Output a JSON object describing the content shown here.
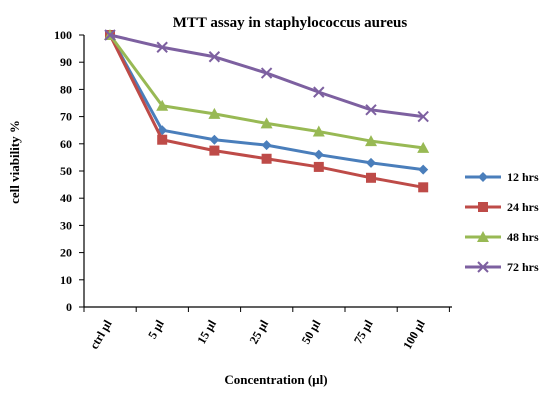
{
  "chart_data": {
    "type": "line",
    "title": "MTT assay in staphylococcus aureus",
    "xlabel": "Concentration (µl)",
    "ylabel": "cell viability %",
    "categories": [
      "ctrl µl",
      "5 µl",
      "15 µl",
      "25 µl",
      "50 µl",
      "75 µl",
      "100 µl"
    ],
    "ylim": [
      0,
      100
    ],
    "yticks": [
      0,
      10,
      20,
      30,
      40,
      50,
      60,
      70,
      80,
      90,
      100
    ],
    "grid": false,
    "legend_position": "right",
    "series": [
      {
        "name": "12 hrs",
        "color": "#4a7ebb",
        "marker": "diamond",
        "values": [
          100,
          65,
          61.5,
          59.5,
          56,
          53,
          50.5
        ]
      },
      {
        "name": "24 hrs",
        "color": "#be4b48",
        "marker": "square",
        "values": [
          100,
          61.5,
          57.5,
          54.5,
          51.5,
          47.5,
          44
        ]
      },
      {
        "name": "48 hrs",
        "color": "#98b954",
        "marker": "triangle",
        "values": [
          100,
          74,
          71,
          67.5,
          64.5,
          61,
          58.5
        ]
      },
      {
        "name": "72 hrs",
        "color": "#7d60a0",
        "marker": "x",
        "values": [
          100,
          95.5,
          92,
          86,
          79,
          72.5,
          70
        ]
      }
    ]
  }
}
